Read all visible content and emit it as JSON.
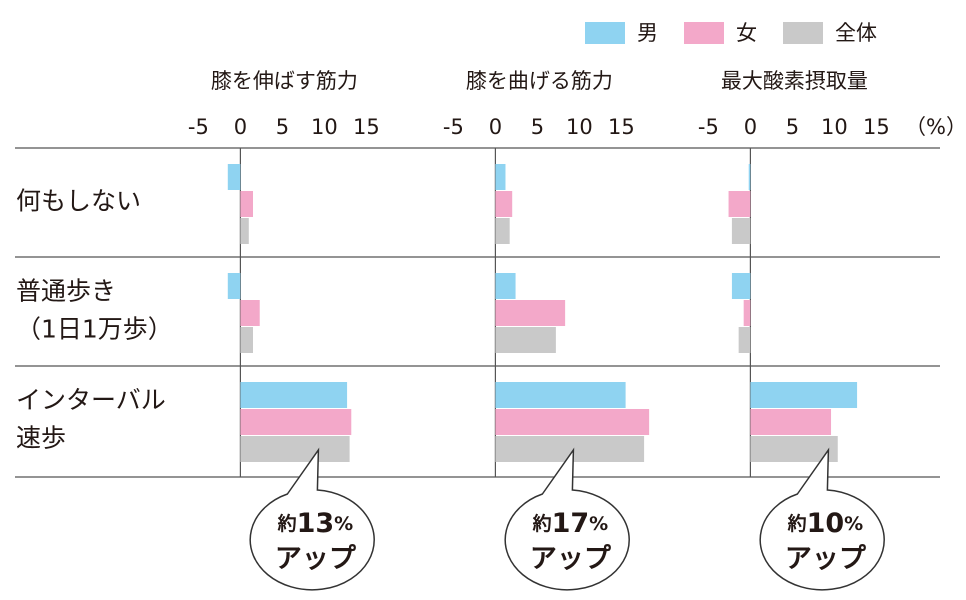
{
  "chart_data": {
    "type": "bar",
    "orientation": "horizontal",
    "categories": [
      [
        "何もしない"
      ],
      [
        "普通歩き",
        "（1日1万歩）"
      ],
      [
        "インターバル",
        "速歩"
      ]
    ],
    "series": [
      {
        "name": "男",
        "color": "#8fd3f1"
      },
      {
        "name": "女",
        "color": "#f3a8c9"
      },
      {
        "name": "全体",
        "color": "#c9c9c9"
      }
    ],
    "unit_label": "（%）",
    "panels": [
      {
        "title": "膝を伸ばす筋力",
        "xlim": [
          -6,
          24
        ],
        "xticks": [
          -5,
          0,
          5,
          10,
          15
        ],
        "series_values": [
          [
            -1.5,
            -1.5,
            12.7
          ],
          [
            1.5,
            2.3,
            13.2
          ],
          [
            1.0,
            1.5,
            13.0
          ]
        ],
        "callout": {
          "prefix": "約",
          "value": 13,
          "unit": "%",
          "suffix": "アップ"
        }
      },
      {
        "title": "膝を曲げる筋力",
        "xlim": [
          -6,
          24
        ],
        "xticks": [
          -5,
          0,
          5,
          10,
          15
        ],
        "series_values": [
          [
            1.2,
            2.4,
            15.5
          ],
          [
            2.0,
            8.3,
            18.3
          ],
          [
            1.7,
            7.2,
            17.7
          ]
        ],
        "callout": {
          "prefix": "約",
          "value": 17,
          "unit": "%",
          "suffix": "アップ"
        }
      },
      {
        "title": "最大酸素摂取量",
        "xlim": [
          -6,
          24
        ],
        "xticks": [
          -5,
          0,
          5,
          10,
          15
        ],
        "series_values": [
          [
            -0.2,
            -2.2,
            12.7
          ],
          [
            -2.6,
            -0.8,
            9.6
          ],
          [
            -2.2,
            -1.4,
            10.4
          ]
        ],
        "callout": {
          "prefix": "約",
          "value": 10,
          "unit": "%",
          "suffix": "アップ"
        }
      }
    ]
  }
}
